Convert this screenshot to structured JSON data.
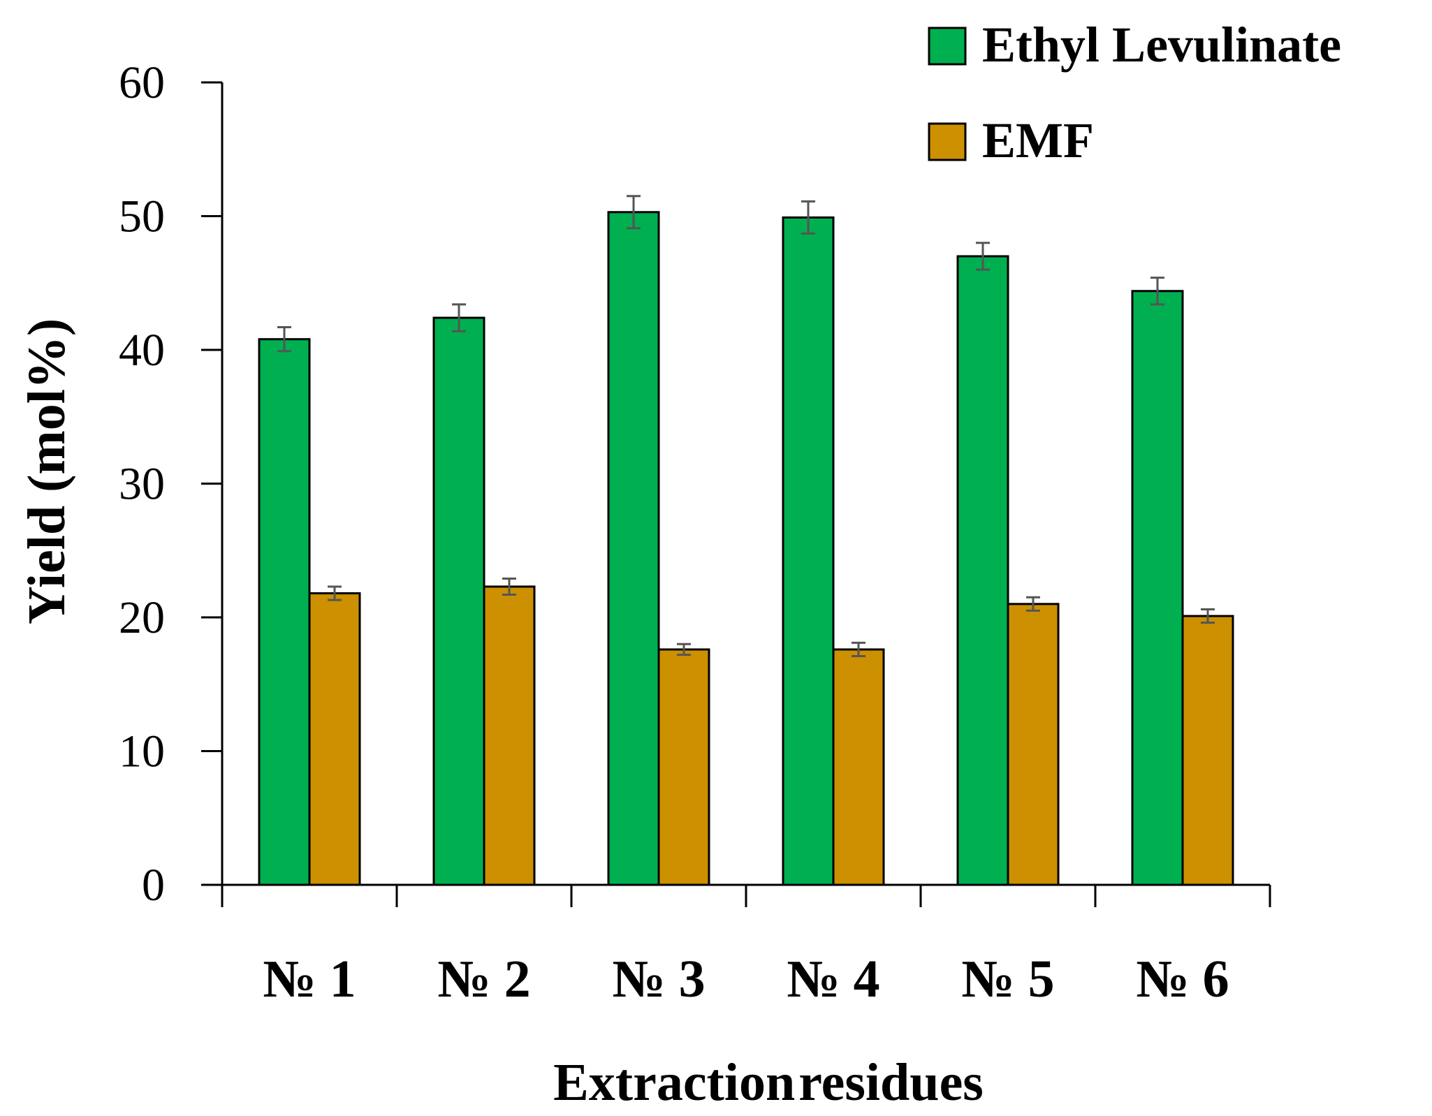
{
  "chart_data": {
    "type": "bar",
    "xlabel": "Extraction residues",
    "ylabel": "Yield (mol%)",
    "categories": [
      "№ 1",
      "№ 2",
      "№ 3",
      "№ 4",
      "№ 5",
      "№ 6"
    ],
    "ylim": [
      0,
      60
    ],
    "yticks": [
      0,
      10,
      20,
      30,
      40,
      50,
      60
    ],
    "legend_position": "top-right",
    "grid": false,
    "series": [
      {
        "name": "Ethyl Levulinate",
        "color": "#00b050",
        "values": [
          40.8,
          42.4,
          50.3,
          49.9,
          47.0,
          44.4
        ],
        "errors": [
          0.9,
          1.0,
          1.2,
          1.2,
          1.0,
          1.0
        ]
      },
      {
        "name": "EMF",
        "color": "#cc9000",
        "values": [
          21.8,
          22.3,
          17.6,
          17.6,
          21.0,
          20.1
        ],
        "errors": [
          0.5,
          0.6,
          0.4,
          0.5,
          0.5,
          0.5
        ]
      }
    ]
  }
}
